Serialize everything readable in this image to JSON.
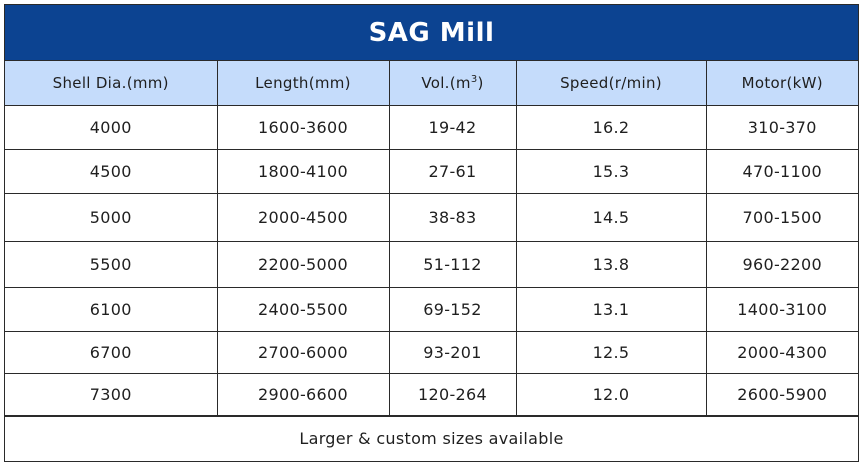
{
  "title": "SAG Mill",
  "headers": {
    "shell_dia": "Shell Dia.(mm)",
    "length": "Length(mm)",
    "vol_prefix": "Vol.(m",
    "vol_sup": "3",
    "vol_suffix": ")",
    "speed": "Speed(r/min)",
    "motor": "Motor(kW)"
  },
  "rows": [
    [
      "4000",
      "1600-3600",
      "19-42",
      "16.2",
      "310-370"
    ],
    [
      "4500",
      "1800-4100",
      "27-61",
      "15.3",
      "470-1100"
    ],
    [
      "5000",
      "2000-4500",
      "38-83",
      "14.5",
      "700-1500"
    ],
    [
      "5500",
      "2200-5000",
      "51-112",
      "13.8",
      "960-2200"
    ],
    [
      "6100",
      "2400-5500",
      "69-152",
      "13.1",
      "1400-3100"
    ],
    [
      "6700",
      "2700-6000",
      "93-201",
      "12.5",
      "2000-4300"
    ],
    [
      "7300",
      "2900-6600",
      "120-264",
      "12.0",
      "2600-5900"
    ]
  ],
  "footer": "Larger & custom sizes available",
  "colors": {
    "title_bg": "#0c4391",
    "header_bg": "#c5dcfb"
  }
}
